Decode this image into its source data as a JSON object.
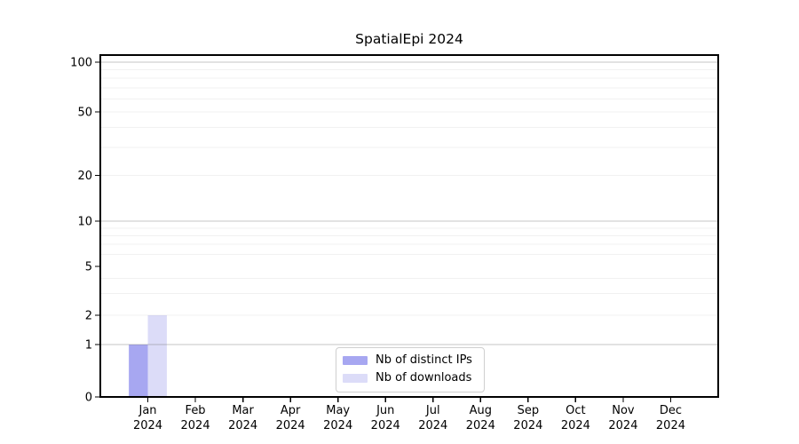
{
  "chart_data": {
    "type": "bar",
    "title": "SpatialEpi 2024",
    "categories": [
      {
        "label": "Jan",
        "sub": "2024"
      },
      {
        "label": "Feb",
        "sub": "2024"
      },
      {
        "label": "Mar",
        "sub": "2024"
      },
      {
        "label": "Apr",
        "sub": "2024"
      },
      {
        "label": "May",
        "sub": "2024"
      },
      {
        "label": "Jun",
        "sub": "2024"
      },
      {
        "label": "Jul",
        "sub": "2024"
      },
      {
        "label": "Aug",
        "sub": "2024"
      },
      {
        "label": "Sep",
        "sub": "2024"
      },
      {
        "label": "Oct",
        "sub": "2024"
      },
      {
        "label": "Nov",
        "sub": "2024"
      },
      {
        "label": "Dec",
        "sub": "2024"
      }
    ],
    "series": [
      {
        "name": "Nb of distinct IPs",
        "color": "#a7a7f1",
        "values": [
          1,
          0,
          0,
          0,
          0,
          0,
          0,
          0,
          0,
          0,
          0,
          0
        ]
      },
      {
        "name": "Nb of downloads",
        "color": "#dcdcf8",
        "values": [
          2,
          0,
          0,
          0,
          0,
          0,
          0,
          0,
          0,
          0,
          0,
          0
        ]
      }
    ],
    "y_axis": {
      "tick_values": [
        0,
        1,
        2,
        5,
        10,
        20,
        50,
        100
      ],
      "tick_labels": [
        "0",
        "1",
        "2",
        "5",
        "10",
        "20",
        "50",
        "100"
      ],
      "major_gridlines": [
        1,
        10,
        100
      ],
      "minor_gridlines": [
        2,
        3,
        4,
        6,
        7,
        8,
        9,
        20,
        30,
        40,
        50,
        60,
        70,
        80,
        90
      ],
      "scale": "log-like with linear 0-1 segment",
      "range": [
        0,
        100
      ],
      "grid": true
    },
    "legend": {
      "position": "lower center"
    },
    "colors": {
      "major_grid": "#c9c9c9",
      "minor_grid": "#f0f0f0",
      "axis": "#000000",
      "background": "#ffffff"
    }
  }
}
